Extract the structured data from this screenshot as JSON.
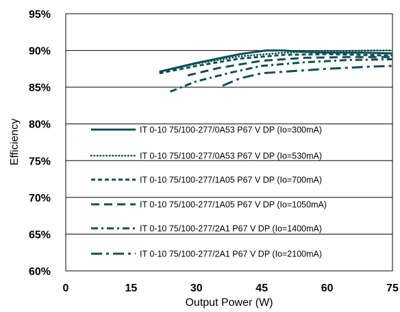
{
  "chart_data": {
    "type": "line",
    "xlabel": "Output Power (W)",
    "ylabel": "Efficiency",
    "xlim": [
      0,
      75
    ],
    "ylim": [
      60,
      95
    ],
    "x_ticks": [
      "0",
      "15",
      "30",
      "45",
      "60",
      "75"
    ],
    "y_ticks": [
      "60%",
      "65%",
      "70%",
      "75%",
      "80%",
      "85%",
      "90%",
      "95%"
    ],
    "grid": "horizontal",
    "legend_position": "inside-bottom",
    "line_color": "#0d4f55",
    "series": [
      {
        "name": "IT 0-10 75/100-277/0A53 P67 V DP (Io=300mA)",
        "style": "solid",
        "x": [
          21.5,
          30,
          40,
          46,
          50,
          55,
          60,
          68,
          75
        ],
        "y": [
          87.1,
          88.3,
          89.5,
          90.0,
          90.0,
          89.8,
          89.7,
          89.7,
          89.6
        ]
      },
      {
        "name": "IT 0-10 75/100-277/0A53 P67 V DP (Io=530mA)",
        "style": "dotted",
        "x": [
          23,
          30,
          40,
          50,
          60,
          70,
          75
        ],
        "y": [
          87.3,
          88.2,
          89.2,
          89.7,
          89.9,
          90.0,
          90.0
        ]
      },
      {
        "name": "IT 0-10 75/100-277/1A05 P67 V DP (Io=700mA)",
        "style": "dashed",
        "x": [
          21.5,
          30,
          40,
          50,
          60,
          75
        ],
        "y": [
          86.9,
          87.9,
          88.9,
          89.4,
          89.5,
          89.3
        ]
      },
      {
        "name": "IT 0-10 75/100-277/1A05 P67 V DP (Io=1050mA)",
        "style": "long-dash",
        "x": [
          28,
          35,
          45,
          55,
          65,
          75
        ],
        "y": [
          86.6,
          87.6,
          88.6,
          89.0,
          89.1,
          89.1
        ]
      },
      {
        "name": "IT 0-10 75/100-277/2A1 P67 V DP (Io=1400mA)",
        "style": "dash-dot",
        "x": [
          24,
          30,
          38,
          45,
          55,
          65,
          75
        ],
        "y": [
          84.4,
          85.8,
          87.0,
          87.9,
          88.4,
          88.7,
          88.8
        ]
      },
      {
        "name": "IT 0-10 75/100-277/2A1 P67 V DP (Io=2100mA)",
        "style": "long-dash-dot",
        "x": [
          36,
          40,
          45,
          50,
          60,
          70,
          75
        ],
        "y": [
          85.2,
          86.2,
          86.9,
          87.1,
          87.5,
          87.8,
          87.9
        ]
      }
    ]
  }
}
